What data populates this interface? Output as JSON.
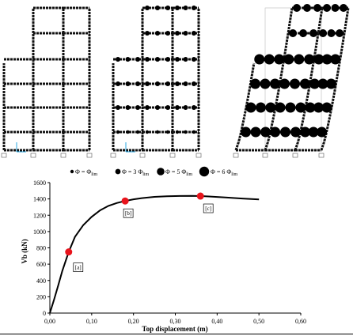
{
  "legend": {
    "items": [
      {
        "symbol": "Φ = Φ",
        "sub": "lim"
      },
      {
        "symbol": "Φ = 3 Φ",
        "sub": "lim"
      },
      {
        "symbol": "Φ = 5 Φ",
        "sub": "lim"
      },
      {
        "symbol": "Φ = 6 Φ",
        "sub": "lim"
      }
    ]
  },
  "frames": [
    {
      "label": "a",
      "drift_fraction": 0.0,
      "hinge_level": 0
    },
    {
      "label": "b",
      "drift_fraction": 0.0,
      "hinge_level": 1
    },
    {
      "label": "c",
      "drift_fraction": 1.0,
      "hinge_level": 2
    }
  ],
  "colors": {
    "curve": "#000000",
    "marker": "#e8141c",
    "frame": "#111111"
  },
  "chart_data": {
    "type": "line",
    "title": "",
    "xlabel": "Top displacement (m)",
    "ylabel": "Vb (kN)",
    "xlim": [
      0,
      0.6
    ],
    "ylim": [
      0,
      1600
    ],
    "xticks": [
      0,
      0.1,
      0.2,
      0.3,
      0.4,
      0.5,
      0.6
    ],
    "xtick_labels": [
      "0,00",
      "0,10",
      "0,20",
      "0,30",
      "0,40",
      "0,50",
      "0,60"
    ],
    "yticks": [
      0,
      200,
      400,
      600,
      800,
      1000,
      1200,
      1400,
      1600
    ],
    "ytick_labels": [
      "0",
      "200",
      "400",
      "600",
      "800",
      "1000",
      "1200",
      "1400",
      "1600"
    ],
    "grid": false,
    "series": [
      {
        "x": [
          0,
          0.01,
          0.02,
          0.03,
          0.045,
          0.06,
          0.08,
          0.1,
          0.12,
          0.14,
          0.16,
          0.18,
          0.2,
          0.22,
          0.25,
          0.28,
          0.31,
          0.34,
          0.36,
          0.38,
          0.42,
          0.46,
          0.5
        ],
        "y": [
          0,
          165,
          340,
          520,
          750,
          935,
          1080,
          1180,
          1260,
          1315,
          1350,
          1375,
          1395,
          1410,
          1425,
          1432,
          1436,
          1437,
          1435,
          1430,
          1418,
          1405,
          1393
        ]
      }
    ],
    "markers": [
      {
        "x": 0.045,
        "y": 750,
        "label": "[a]"
      },
      {
        "x": 0.18,
        "y": 1375,
        "label": "[b]"
      },
      {
        "x": 0.36,
        "y": 1435,
        "label": "[c]"
      }
    ]
  }
}
